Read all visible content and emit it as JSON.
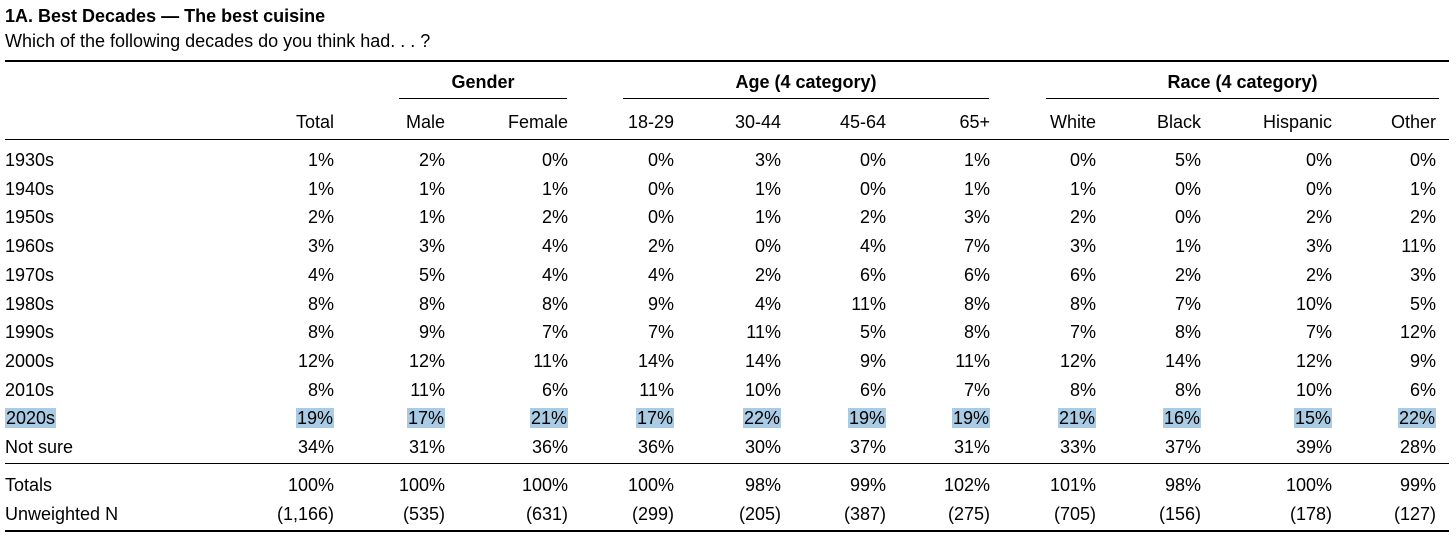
{
  "title": "1A. Best Decades — The best cuisine",
  "subtitle": "Which of the following decades do you think had. . . ?",
  "groups": {
    "gender": "Gender",
    "age": "Age (4 category)",
    "race": "Race (4 category)"
  },
  "columns": [
    "Total",
    "Male",
    "Female",
    "18-29",
    "30-44",
    "45-64",
    "65+",
    "White",
    "Black",
    "Hispanic",
    "Other"
  ],
  "highlight_color": "#a9cbe4",
  "rows": [
    {
      "label": "1930s",
      "values": [
        "1%",
        "2%",
        "0%",
        "0%",
        "3%",
        "0%",
        "1%",
        "0%",
        "5%",
        "0%",
        "0%"
      ]
    },
    {
      "label": "1940s",
      "values": [
        "1%",
        "1%",
        "1%",
        "0%",
        "1%",
        "0%",
        "1%",
        "1%",
        "0%",
        "0%",
        "1%"
      ]
    },
    {
      "label": "1950s",
      "values": [
        "2%",
        "1%",
        "2%",
        "0%",
        "1%",
        "2%",
        "3%",
        "2%",
        "0%",
        "2%",
        "2%"
      ]
    },
    {
      "label": "1960s",
      "values": [
        "3%",
        "3%",
        "4%",
        "2%",
        "0%",
        "4%",
        "7%",
        "3%",
        "1%",
        "3%",
        "11%"
      ]
    },
    {
      "label": "1970s",
      "values": [
        "4%",
        "5%",
        "4%",
        "4%",
        "2%",
        "6%",
        "6%",
        "6%",
        "2%",
        "2%",
        "3%"
      ]
    },
    {
      "label": "1980s",
      "values": [
        "8%",
        "8%",
        "8%",
        "9%",
        "4%",
        "11%",
        "8%",
        "8%",
        "7%",
        "10%",
        "5%"
      ]
    },
    {
      "label": "1990s",
      "values": [
        "8%",
        "9%",
        "7%",
        "7%",
        "11%",
        "5%",
        "8%",
        "7%",
        "8%",
        "7%",
        "12%"
      ]
    },
    {
      "label": "2000s",
      "values": [
        "12%",
        "12%",
        "11%",
        "14%",
        "14%",
        "9%",
        "11%",
        "12%",
        "14%",
        "12%",
        "9%"
      ]
    },
    {
      "label": "2010s",
      "values": [
        "8%",
        "11%",
        "6%",
        "11%",
        "10%",
        "6%",
        "7%",
        "8%",
        "8%",
        "10%",
        "6%"
      ]
    },
    {
      "label": "2020s",
      "highlighted": true,
      "values": [
        "19%",
        "17%",
        "21%",
        "17%",
        "22%",
        "19%",
        "19%",
        "21%",
        "16%",
        "15%",
        "22%"
      ]
    },
    {
      "label": "Not sure",
      "values": [
        "34%",
        "31%",
        "36%",
        "36%",
        "30%",
        "37%",
        "31%",
        "33%",
        "37%",
        "39%",
        "28%"
      ]
    }
  ],
  "totals": {
    "label": "Totals",
    "values": [
      "100%",
      "100%",
      "100%",
      "100%",
      "98%",
      "99%",
      "102%",
      "101%",
      "98%",
      "100%",
      "99%"
    ]
  },
  "unweighted": {
    "label": "Unweighted N",
    "values": [
      "(1,166)",
      "(535)",
      "(631)",
      "(299)",
      "(205)",
      "(387)",
      "(275)",
      "(705)",
      "(156)",
      "(178)",
      "(127)"
    ]
  }
}
